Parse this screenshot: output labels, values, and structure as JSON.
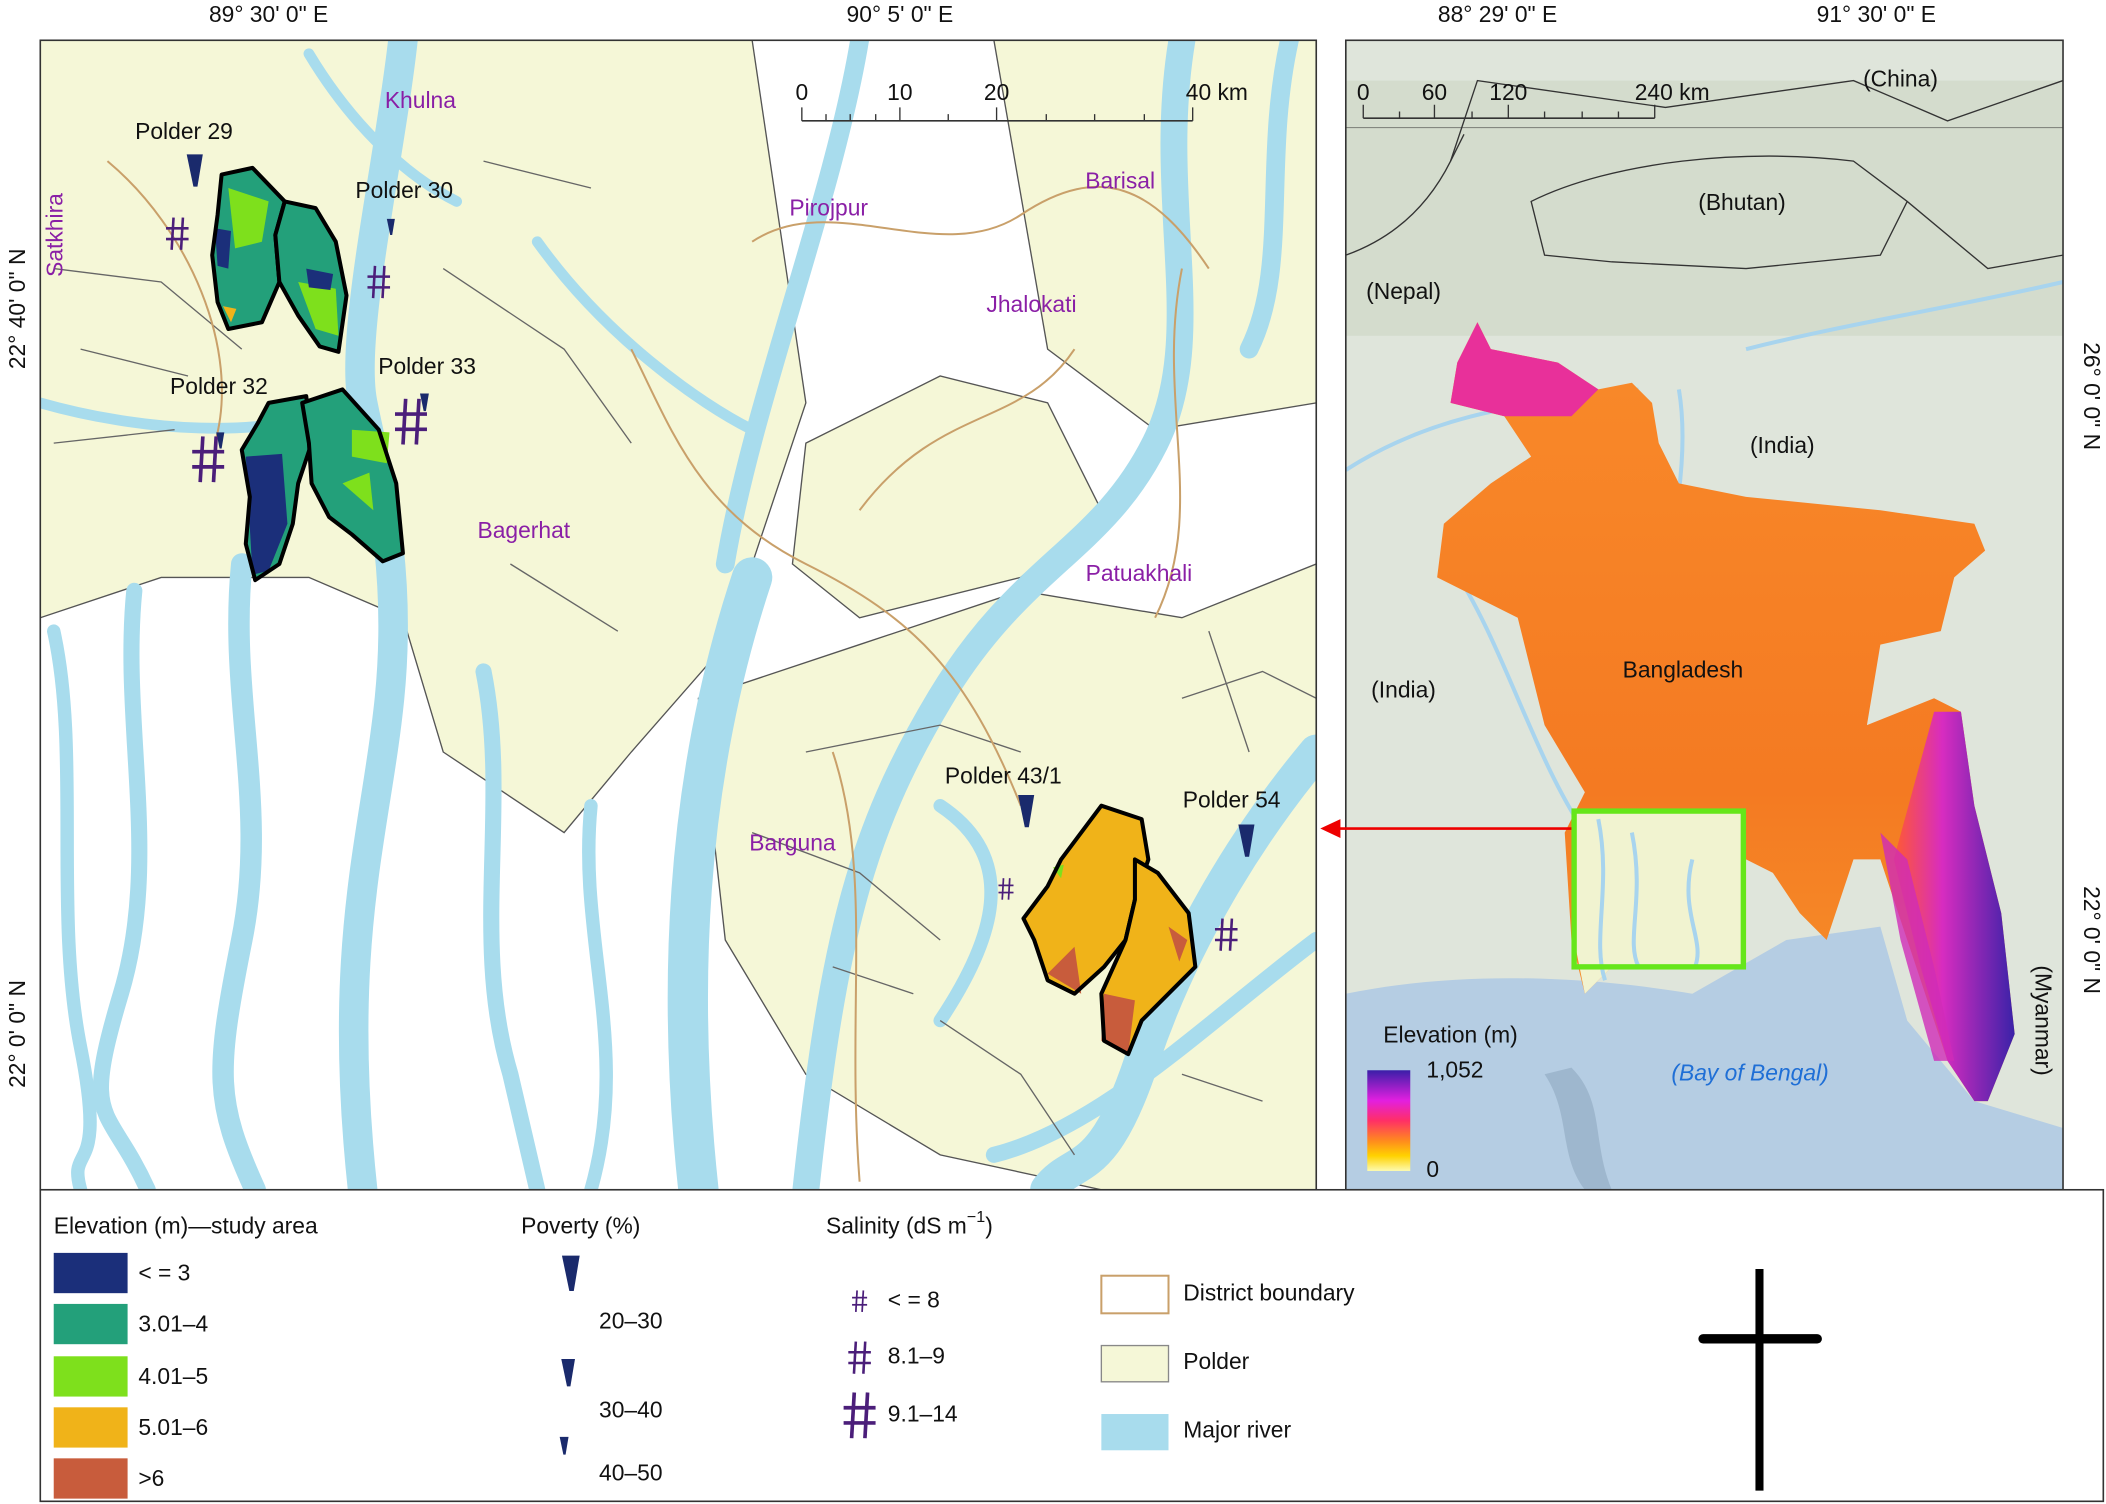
{
  "study_map": {
    "lon_labels": [
      "89° 30' 0\" E",
      "90° 5' 0\" E"
    ],
    "lat_labels": [
      "22° 40' 0\" N",
      "22° 0' 0\" N"
    ],
    "scale_bar": {
      "ticks": [
        0,
        10,
        20
      ],
      "end": "40 km"
    },
    "districts": [
      "Khulna",
      "Satkhira",
      "Pirojpur",
      "Barisal",
      "Jhalokati",
      "Bagerhat",
      "Patuakhali",
      "Barguna"
    ],
    "polders": [
      "Polder 29",
      "Polder 30",
      "Polder 33",
      "Polder 32",
      "Polder 43/1",
      "Polder 54"
    ]
  },
  "overview_map": {
    "lon_labels": [
      "88° 29' 0\" E",
      "91° 30' 0\" E"
    ],
    "lat_labels": [
      "26° 0' 0\" N",
      "22° 0' 0\" N"
    ],
    "scale_bar": {
      "ticks": [
        0,
        60,
        120
      ],
      "end": "240 km"
    },
    "places": [
      "(China)",
      "(Bhutan)",
      "(Nepal)",
      "(India)",
      "(India)",
      "Bangladesh",
      "(Bay of Bengal)",
      "(Myanmar)"
    ],
    "elevation_legend": {
      "title": "Elevation (m)",
      "max": "1,052",
      "min": 0
    }
  },
  "legend": {
    "elevation": {
      "title": "Elevation (m)—study area",
      "classes": [
        "< = 3",
        "3.01–4",
        "4.01–5",
        "5.01–6",
        ">6"
      ]
    },
    "poverty": {
      "title": "Poverty (%)",
      "classes": [
        "20–30",
        "30–40",
        "40–50"
      ]
    },
    "salinity": {
      "title": {
        "text": "Salinity (dS m",
        "sup": "−1",
        "close": ")"
      },
      "classes": [
        "< = 8",
        "8.1–9",
        "9.1–14"
      ]
    },
    "features": [
      "District boundary",
      "Polder",
      "Major river"
    ]
  }
}
